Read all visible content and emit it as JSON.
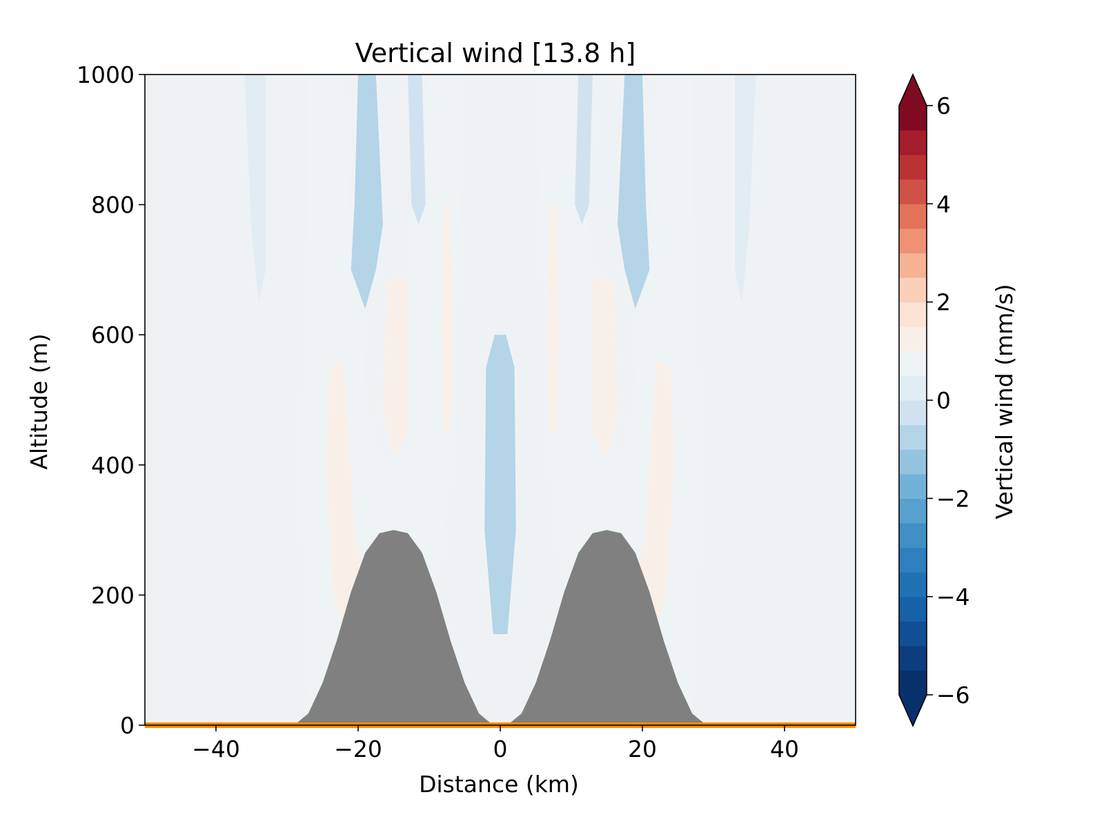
{
  "chart_data": {
    "type": "heatmap",
    "title": "Vertical wind [13.8 h]",
    "xlabel": "Distance (km)",
    "ylabel": "Altitude (m)",
    "xlim": [
      -50,
      50
    ],
    "ylim": [
      0,
      1000
    ],
    "x_ticks": [
      -40,
      -20,
      0,
      20,
      40
    ],
    "y_ticks": [
      0,
      200,
      400,
      600,
      800,
      1000
    ],
    "grid": false,
    "colorbar": {
      "label": "Vertical wind (mm/s)",
      "range": [
        -6,
        6
      ],
      "ticks": [
        -6,
        -4,
        -2,
        0,
        2,
        4,
        6
      ],
      "extend": "both",
      "colormap": "RdBu_r",
      "levels": 24
    },
    "terrain": {
      "color": "#808080",
      "profile": [
        {
          "x": -29,
          "y": 0
        },
        {
          "x": -27,
          "y": 18
        },
        {
          "x": -25,
          "y": 65
        },
        {
          "x": -23,
          "y": 130
        },
        {
          "x": -21,
          "y": 205
        },
        {
          "x": -19,
          "y": 265
        },
        {
          "x": -17,
          "y": 295
        },
        {
          "x": -15,
          "y": 300
        },
        {
          "x": -13,
          "y": 295
        },
        {
          "x": -11,
          "y": 265
        },
        {
          "x": -9,
          "y": 205
        },
        {
          "x": -7,
          "y": 130
        },
        {
          "x": -5,
          "y": 65
        },
        {
          "x": -3,
          "y": 18
        },
        {
          "x": -1,
          "y": 0
        },
        {
          "x": 1,
          "y": 0
        },
        {
          "x": 3,
          "y": 18
        },
        {
          "x": 5,
          "y": 65
        },
        {
          "x": 7,
          "y": 130
        },
        {
          "x": 9,
          "y": 205
        },
        {
          "x": 11,
          "y": 265
        },
        {
          "x": 13,
          "y": 295
        },
        {
          "x": 15,
          "y": 300
        },
        {
          "x": 17,
          "y": 295
        },
        {
          "x": 19,
          "y": 265
        },
        {
          "x": 21,
          "y": 205
        },
        {
          "x": 23,
          "y": 130
        },
        {
          "x": 25,
          "y": 65
        },
        {
          "x": 27,
          "y": 18
        },
        {
          "x": 29,
          "y": 0
        }
      ]
    },
    "ground_line_color": "#ff8c00",
    "field_regions": [
      {
        "name": "pos-band-left-outer",
        "value": 0.3,
        "poly": [
          [
            -36,
            1000
          ],
          [
            -33,
            1000
          ],
          [
            -33,
            700
          ],
          [
            -34,
            650
          ],
          [
            -35,
            760
          ]
        ]
      },
      {
        "name": "pos-band-right-outer",
        "value": 0.3,
        "poly": [
          [
            33,
            1000
          ],
          [
            36,
            1000
          ],
          [
            35,
            760
          ],
          [
            34,
            650
          ],
          [
            33,
            700
          ]
        ]
      },
      {
        "name": "pos-center-left",
        "value": 0.6,
        "poly": [
          [
            -27,
            1000
          ],
          [
            -22,
            1000
          ],
          [
            -21,
            700
          ],
          [
            -19.5,
            650
          ],
          [
            -19,
            500
          ],
          [
            -17,
            400
          ],
          [
            -13,
            420
          ],
          [
            -13,
            700
          ],
          [
            -10,
            1000
          ],
          [
            -5,
            1000
          ],
          [
            -7,
            400
          ],
          [
            -9,
            200
          ],
          [
            -11,
            265
          ],
          [
            -17,
            300
          ],
          [
            -21,
            205
          ],
          [
            -25,
            65
          ],
          [
            -27,
            0
          ],
          [
            -28,
            400
          ],
          [
            -27,
            800
          ]
        ]
      },
      {
        "name": "pos-center-right",
        "value": 0.6,
        "poly": [
          [
            27,
            1000
          ],
          [
            22,
            1000
          ],
          [
            21,
            700
          ],
          [
            19.5,
            650
          ],
          [
            19,
            500
          ],
          [
            17,
            400
          ],
          [
            13,
            420
          ],
          [
            13,
            700
          ],
          [
            10,
            1000
          ],
          [
            5,
            1000
          ],
          [
            7,
            400
          ],
          [
            9,
            200
          ],
          [
            11,
            265
          ],
          [
            17,
            300
          ],
          [
            21,
            205
          ],
          [
            25,
            65
          ],
          [
            27,
            0
          ],
          [
            28,
            400
          ],
          [
            27,
            800
          ]
        ]
      },
      {
        "name": "pos-strong-left",
        "value": 1.2,
        "poly": [
          [
            -24,
            550
          ],
          [
            -22,
            560
          ],
          [
            -21,
            400
          ],
          [
            -20.5,
            300
          ],
          [
            -19.5,
            250
          ],
          [
            -22,
            150
          ],
          [
            -23.5,
            200
          ],
          [
            -24.5,
            400
          ]
        ]
      },
      {
        "name": "pos-strong-right",
        "value": 1.2,
        "poly": [
          [
            24,
            550
          ],
          [
            22,
            560
          ],
          [
            21,
            400
          ],
          [
            20.5,
            300
          ],
          [
            19.5,
            250
          ],
          [
            22,
            150
          ],
          [
            23.5,
            200
          ],
          [
            24.5,
            400
          ]
        ]
      },
      {
        "name": "pos-mid-left",
        "value": 1.0,
        "poly": [
          [
            -8,
            800
          ],
          [
            -7,
            800
          ],
          [
            -6.5,
            600
          ],
          [
            -7,
            450
          ],
          [
            -8,
            450
          ],
          [
            -8.3,
            600
          ]
        ]
      },
      {
        "name": "pos-mid-right",
        "value": 1.0,
        "poly": [
          [
            8,
            800
          ],
          [
            7,
            800
          ],
          [
            6.5,
            600
          ],
          [
            7,
            450
          ],
          [
            8,
            450
          ],
          [
            8.3,
            600
          ]
        ]
      },
      {
        "name": "pos-left-core",
        "value": 1.0,
        "poly": [
          [
            -16,
            680
          ],
          [
            -13,
            690
          ],
          [
            -13,
            450
          ],
          [
            -15,
            410
          ],
          [
            -16.5,
            480
          ]
        ]
      },
      {
        "name": "pos-right-core",
        "value": 1.0,
        "poly": [
          [
            16,
            680
          ],
          [
            13,
            690
          ],
          [
            13,
            450
          ],
          [
            15,
            410
          ],
          [
            16.5,
            480
          ]
        ]
      },
      {
        "name": "neg-top-left-a",
        "value": -0.6,
        "poly": [
          [
            -20,
            1000
          ],
          [
            -17.5,
            1000
          ],
          [
            -16.5,
            770
          ],
          [
            -17.5,
            700
          ],
          [
            -19,
            640
          ],
          [
            -21,
            700
          ],
          [
            -20.5,
            800
          ]
        ]
      },
      {
        "name": "neg-top-left-b",
        "value": -0.5,
        "poly": [
          [
            -13,
            1000
          ],
          [
            -11,
            1000
          ],
          [
            -10.5,
            800
          ],
          [
            -11.5,
            770
          ],
          [
            -12.5,
            800
          ]
        ]
      },
      {
        "name": "neg-top-right-a",
        "value": -0.6,
        "poly": [
          [
            20,
            1000
          ],
          [
            17.5,
            1000
          ],
          [
            16.5,
            770
          ],
          [
            17.5,
            700
          ],
          [
            19,
            640
          ],
          [
            21,
            700
          ],
          [
            20.5,
            800
          ]
        ]
      },
      {
        "name": "neg-top-right-b",
        "value": -0.5,
        "poly": [
          [
            13,
            1000
          ],
          [
            11,
            1000
          ],
          [
            10.5,
            800
          ],
          [
            11.5,
            770
          ],
          [
            12.5,
            800
          ]
        ]
      },
      {
        "name": "neg-center-column",
        "value": -0.6,
        "poly": [
          [
            -0.8,
            600
          ],
          [
            0.8,
            600
          ],
          [
            2,
            550
          ],
          [
            2.2,
            300
          ],
          [
            1,
            140
          ],
          [
            -1,
            140
          ],
          [
            -2.2,
            300
          ],
          [
            -2,
            550
          ]
        ]
      }
    ]
  }
}
